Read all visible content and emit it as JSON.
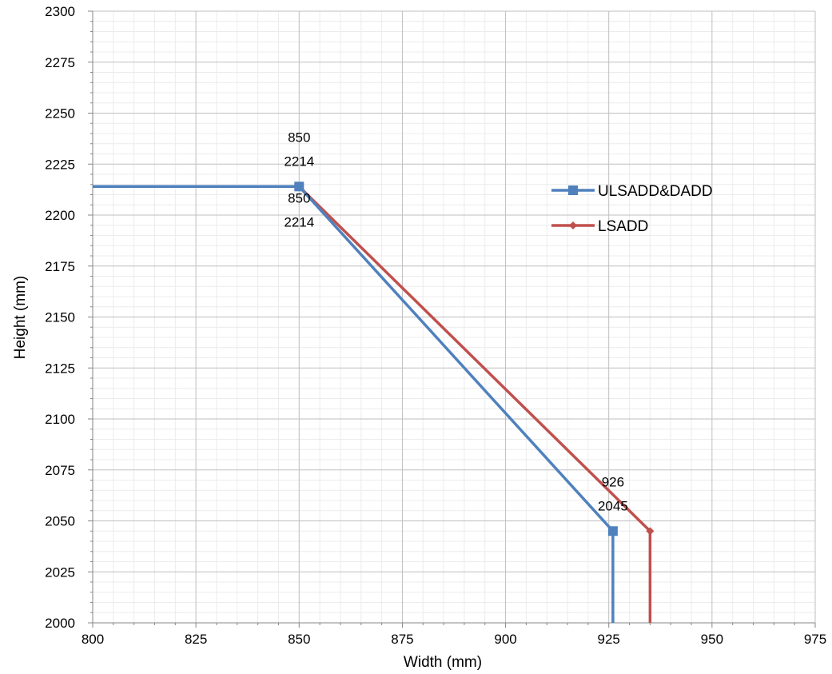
{
  "chart_data": {
    "type": "line",
    "title": "",
    "xlabel": "Width (mm)",
    "ylabel": "Height (mm)",
    "xlim": [
      800,
      975
    ],
    "ylim": [
      2000,
      2300
    ],
    "x_major_ticks": [
      800,
      825,
      850,
      875,
      900,
      925,
      950,
      975
    ],
    "y_major_ticks": [
      2000,
      2025,
      2050,
      2075,
      2100,
      2125,
      2150,
      2175,
      2200,
      2225,
      2250,
      2275,
      2300
    ],
    "x_minor_step": 5,
    "y_minor_step": 5,
    "x_tick_labels": [
      "800",
      "825",
      "850",
      "875",
      "900",
      "925",
      "950",
      "975"
    ],
    "y_tick_labels": [
      "2000",
      "2025",
      "2050",
      "2075",
      "2100",
      "2125",
      "2150",
      "2175",
      "2200",
      "2225",
      "2250",
      "2275",
      "2300"
    ],
    "grid": true,
    "legend_position": "right",
    "series": [
      {
        "name": "ULSADD&DADD",
        "color": "#4f81bd",
        "marker": "square",
        "points": [
          {
            "x": 800,
            "y": 2214
          },
          {
            "x": 850,
            "y": 2214
          },
          {
            "x": 926,
            "y": 2045
          },
          {
            "x": 926,
            "y": 2000
          }
        ],
        "markers_at": [
          1,
          2
        ]
      },
      {
        "name": "LSADD",
        "color": "#c0504d",
        "marker": "diamond",
        "points": [
          {
            "x": 800,
            "y": 2214
          },
          {
            "x": 850,
            "y": 2214
          },
          {
            "x": 935,
            "y": 2045
          },
          {
            "x": 935,
            "y": 2000
          }
        ],
        "markers_at": [
          1,
          2
        ]
      }
    ],
    "annotations": [
      {
        "x_text": "850",
        "y_text": "2214",
        "anchor_x": 850,
        "anchor_y": 2214,
        "placement": "above"
      },
      {
        "x_text": "850",
        "y_text": "2214",
        "anchor_x": 850,
        "anchor_y": 2214,
        "placement": "below"
      },
      {
        "x_text": "926",
        "y_text": "2045",
        "anchor_x": 926,
        "anchor_y": 2045,
        "placement": "above"
      }
    ]
  }
}
